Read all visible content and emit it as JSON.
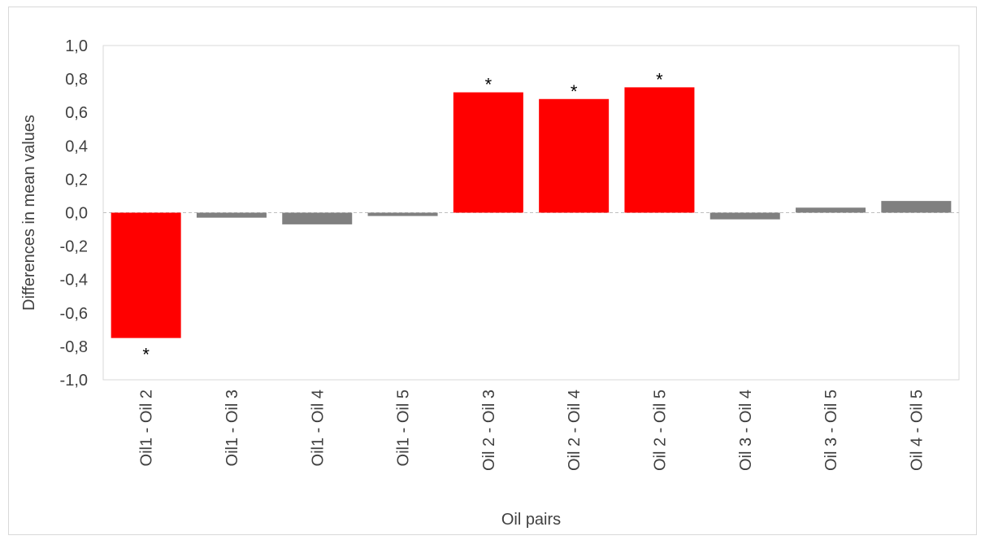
{
  "chart_data": {
    "type": "bar",
    "categories": [
      "Oil1 - Oil 2",
      "Oil1 - Oil 3",
      "Oil1 - Oil 4",
      "Oil1 - Oil 5",
      "Oil 2 - Oil 3",
      "Oil 2 - Oil 4",
      "Oil 2 - Oil 5",
      "Oil 3 - Oil 4",
      "Oil 3 - Oil 5",
      "Oil 4 - Oil 5"
    ],
    "values": [
      -0.75,
      -0.03,
      -0.07,
      -0.02,
      0.72,
      0.68,
      0.75,
      -0.04,
      0.03,
      0.07
    ],
    "significant": [
      true,
      false,
      false,
      false,
      true,
      true,
      true,
      false,
      false,
      false
    ],
    "significance_marker": "*",
    "xlabel": "Oil  pairs",
    "ylabel": "Differences in mean values",
    "ylim": [
      -1.0,
      1.0
    ],
    "yticks": [
      "1,0",
      "0,8",
      "0,6",
      "0,4",
      "0,2",
      "0,0",
      "-0,2",
      "-0,4",
      "-0,6",
      "-0,8",
      "-1,0"
    ],
    "grid": false,
    "colors": {
      "significant": "#ff0000",
      "non_significant": "#808080",
      "axis": "#d9d9d9",
      "zero_line": "#bfbfbf"
    }
  }
}
